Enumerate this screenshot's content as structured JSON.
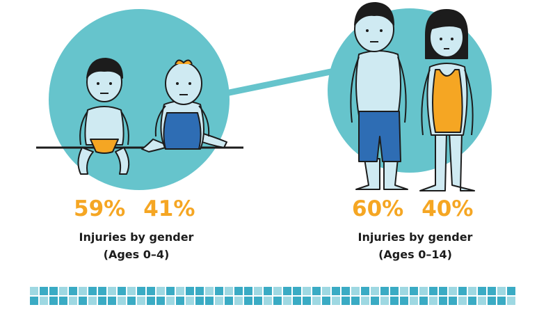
{
  "left_panel": {
    "boy_percent": "59%",
    "girl_percent": "41%",
    "caption_line1": "Injuries by gender",
    "caption_line2": "(Ages 0–4)"
  },
  "right_panel": {
    "boy_percent": "60%",
    "girl_percent": "40%",
    "caption_line1": "Injuries by gender",
    "caption_line2": "(Ages 0–14)"
  },
  "colors": {
    "circle": "#66c4cc",
    "accent_orange": "#f5a623",
    "swimwear_blue": "#2e6db4",
    "skin": "#cfeaf2",
    "tile_dark": "#3aabc4",
    "tile_light": "#9ed8e2"
  },
  "icons": [
    "toddler-boy-illustration",
    "toddler-girl-illustration",
    "boy-illustration",
    "girl-illustration"
  ]
}
